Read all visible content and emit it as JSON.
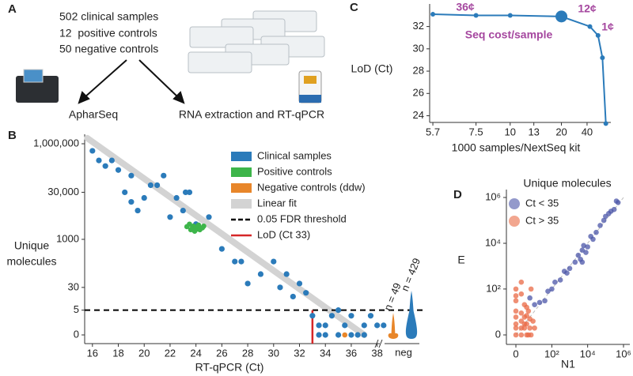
{
  "panel_a": {
    "panel": "A",
    "lines": [
      "502 clinical samples",
      "12  positive controls",
      "50 negative controls"
    ],
    "left": "ApharSeq",
    "right": "RNA extraction and RT-qPCR"
  },
  "chart_data": [
    {
      "type": "scatter",
      "panel": "B",
      "xlabel": "RT-qPCR (Ct)",
      "ylabel": [
        "Unique",
        "molecules"
      ],
      "xlim": [
        15.4,
        39
      ],
      "xticks": [
        16,
        18,
        20,
        22,
        24,
        26,
        28,
        30,
        32,
        34,
        36,
        38
      ],
      "ylim": [
        0,
        1000000
      ],
      "yscale": "log1p",
      "yticks": [
        0,
        5,
        30,
        1000,
        {
          "value": 30000,
          "label": "30,000"
        },
        {
          "value": 1000000,
          "label": "1,000,000"
        }
      ],
      "neg_category": "neg",
      "series": [
        {
          "name": "Clinical samples",
          "color": "#2b7bba",
          "x": [
            16,
            16.5,
            17,
            17.5,
            18,
            18.5,
            19,
            19,
            19.5,
            20,
            20.5,
            21,
            21.5,
            22,
            22.5,
            23,
            23.2,
            23.5,
            24,
            25,
            26,
            27,
            27.5,
            28,
            29,
            30,
            30.5,
            31,
            31.5,
            32,
            32.5,
            33,
            33.5,
            34,
            34,
            35,
            35.5,
            36,
            36.5,
            37,
            37.5,
            38,
            38.5,
            34.5,
            35,
            36,
            37,
            33.5
          ],
          "values": [
            600000,
            300000,
            200000,
            300000,
            150000,
            30000,
            15000,
            100000,
            8000,
            20000,
            50000,
            50000,
            100000,
            5000,
            20000,
            8000,
            30000,
            30000,
            3000,
            5000,
            500,
            200,
            200,
            40,
            80,
            200,
            30,
            80,
            15,
            40,
            20,
            3,
            1,
            0,
            1,
            5,
            1,
            3,
            0,
            1,
            3,
            1,
            1,
            3,
            0,
            0,
            0,
            0
          ]
        },
        {
          "name": "Positive controls",
          "color": "#3db54a",
          "x": [
            23.3,
            23.5,
            23.6,
            23.7,
            23.8,
            23.9,
            24.0,
            24.1,
            24.2,
            24.3,
            24.5,
            24.6
          ],
          "values": [
            2500,
            3000,
            2000,
            2200,
            2600,
            1800,
            2400,
            2100,
            2800,
            2000,
            2300,
            2600
          ]
        },
        {
          "name": "Negative controls (ddw)",
          "color": "#e8862a",
          "x": [
            35.5
          ],
          "values": [
            0
          ]
        }
      ],
      "fit": {
        "name": "Linear fit",
        "color": "#d3d3d3",
        "x": [
          15.6,
          37
        ],
        "values": [
          1500000,
          0
        ]
      },
      "threshold": {
        "name": "0.05 FDR threshold",
        "value": 5,
        "color": "#000000"
      },
      "lod": {
        "name": "LoD (Ct 33)",
        "value": 33,
        "color": "#d62728"
      },
      "violins": [
        {
          "label": "n = 49",
          "color": "#e8862a"
        },
        {
          "label": "n = 429",
          "color": "#2b7bba"
        }
      ]
    },
    {
      "type": "line",
      "panel": "C",
      "xlabel": "1000 samples/NextSeq kit",
      "ylabel": "LoD (Ct)",
      "xscale": "reciprocal",
      "xlim": [
        5.6,
        300
      ],
      "xticks": [
        5.7,
        7.5,
        10,
        13,
        20,
        40
      ],
      "ylim": [
        23.4,
        33.6
      ],
      "yticks": [
        24,
        26,
        28,
        30,
        32
      ],
      "x": [
        5.7,
        7.5,
        10,
        20,
        45,
        70,
        100,
        150
      ],
      "values": [
        33.1,
        33.0,
        33.0,
        32.9,
        32.0,
        31.2,
        29.2,
        23.3
      ],
      "color": "#2b7bba",
      "highlight": 3,
      "annotations": [
        "36¢",
        "12¢",
        "1¢",
        "Seq cost/sample"
      ],
      "annotation_color": "#a5479f"
    },
    {
      "type": "scatter",
      "panel": "D",
      "xlabel": "N1",
      "ylabel": "E",
      "xscale": "log1p",
      "yscale": "log1p",
      "xlim": [
        0,
        1000000
      ],
      "ylim": [
        0,
        1000000
      ],
      "xticks": [
        0,
        {
          "value": 100,
          "label": "10²"
        },
        {
          "value": 10000,
          "label": "10⁴"
        },
        {
          "value": 1000000,
          "label": "10⁶"
        }
      ],
      "yticks": [
        0,
        {
          "value": 100,
          "label": "10²"
        },
        {
          "value": 10000,
          "label": "10⁴"
        },
        {
          "value": 1000000,
          "label": "10⁶"
        }
      ],
      "legend_title": "Unique molecules",
      "diagonal": true,
      "series": [
        {
          "name": "Ct < 35",
          "color": "#4b55a8",
          "x": [
            20,
            40,
            60,
            100,
            150,
            300,
            500,
            700,
            1000,
            2000,
            3000,
            4000,
            5000,
            5000,
            6000,
            8000,
            10000,
            15000,
            20000,
            30000,
            50000,
            80000,
            100000,
            150000,
            200000,
            300000,
            400000,
            500000,
            5,
            10
          ],
          "values": [
            25,
            30,
            80,
            100,
            200,
            250,
            600,
            500,
            800,
            1500,
            3000,
            2000,
            5000,
            1500,
            8000,
            4000,
            7000,
            20000,
            15000,
            30000,
            60000,
            100000,
            150000,
            200000,
            250000,
            300000,
            700000,
            600000,
            40,
            20
          ]
        },
        {
          "name": "Ct > 35",
          "color": "#ea6a45",
          "x": [
            0,
            0,
            0,
            0,
            0,
            0,
            1,
            1,
            1,
            2,
            2,
            2,
            3,
            3,
            4,
            5,
            5,
            6,
            8,
            10,
            0,
            1,
            2,
            3,
            4,
            0,
            1,
            6,
            1,
            3
          ],
          "values": [
            0,
            2,
            5,
            10,
            30,
            100,
            0,
            3,
            8,
            1,
            5,
            20,
            0,
            2,
            10,
            1,
            4,
            0,
            3,
            1,
            1,
            1,
            2,
            6,
            0,
            50,
            60,
            100,
            200,
            15
          ]
        }
      ]
    }
  ]
}
